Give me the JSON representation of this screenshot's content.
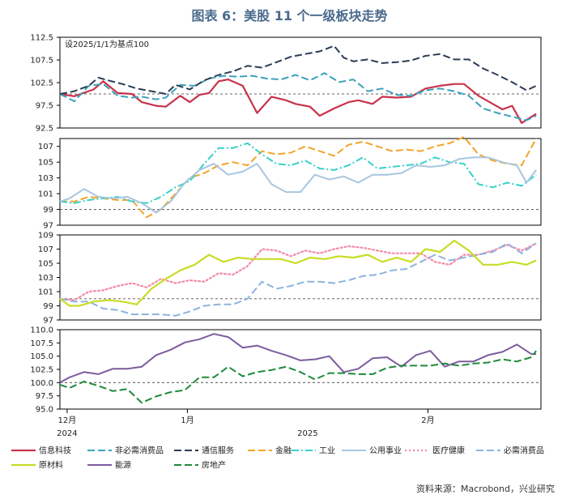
{
  "title": "图表 6：美股 11 个一级板块走势",
  "source": "资料来源：Macrobond，兴业研究",
  "chart_data": {
    "type": "line",
    "note": "设2025/1/1为基点100",
    "x_range": [
      0,
      100
    ],
    "x_ticks": [
      {
        "x": 1.5,
        "label": "12月"
      },
      {
        "x": 26.5,
        "label": "1月"
      },
      {
        "x": 76.5,
        "label": "2月"
      }
    ],
    "x_year_labels": [
      {
        "x": 1.5,
        "label": "2024"
      },
      {
        "x": 51.5,
        "label": "2025"
      }
    ],
    "panels": [
      {
        "ylim": [
          92.5,
          112.5
        ],
        "yticks": [
          "92.5",
          "97.5",
          "102.5",
          "107.5",
          "112.5"
        ],
        "yticks_values": [
          92.5,
          97.5,
          102.5,
          107.5,
          112.5
        ],
        "ref": 100,
        "series": [
          {
            "name": "信息科技",
            "color": "#c8324b",
            "dash": "solid",
            "width": 2.2,
            "x": [
              0,
              3,
              7,
              9,
              12,
              15,
              17,
              20,
              22,
              25,
              27,
              29,
              31,
              33,
              35,
              38,
              41,
              44,
              47,
              49,
              52,
              54,
              57,
              60,
              62,
              65,
              67,
              70,
              73,
              76,
              79,
              82,
              84,
              87,
              90,
              92,
              94,
              96,
              99
            ],
            "y": [
              100,
              99.5,
              101,
              102.8,
              100.2,
              100,
              98.2,
              97.4,
              97.2,
              99.6,
              98.2,
              99.8,
              100.2,
              102.8,
              103.2,
              101.8,
              95.8,
              99.4,
              98.6,
              97.8,
              97.2,
              95.2,
              96.8,
              98.2,
              98.6,
              97.8,
              99.4,
              99.2,
              99.4,
              101.2,
              101.8,
              102.2,
              102.2,
              99.6,
              97.8,
              96.6,
              97.4,
              93.6,
              95.6
            ]
          },
          {
            "name": "非必需消费品",
            "color": "#3aa2bb",
            "dash": "9,4",
            "width": 2,
            "x": [
              0,
              3,
              6,
              9,
              12,
              15,
              17,
              20,
              22,
              25,
              28,
              31,
              34,
              37,
              40,
              43,
              46,
              49,
              52,
              55,
              58,
              61,
              64,
              67,
              70,
              73,
              76,
              79,
              82,
              85,
              88,
              91,
              94,
              97,
              99
            ],
            "y": [
              100,
              98.4,
              101.8,
              102.2,
              99.6,
              99.2,
              99.4,
              98.8,
              99.2,
              102,
              101.8,
              103.4,
              104,
              103.8,
              104,
              103.4,
              103.2,
              104.2,
              103,
              104.6,
              102.6,
              103.2,
              100.6,
              101.2,
              99.8,
              99.6,
              100.8,
              101.2,
              100.6,
              99.6,
              96.8,
              95.8,
              95,
              94.2,
              95.2
            ]
          },
          {
            "name": "通信服务",
            "color": "#2b3d55",
            "dash": "9,4",
            "width": 2,
            "x": [
              0,
              3,
              6,
              8,
              10,
              13,
              16,
              19,
              22,
              24,
              27,
              30,
              33,
              36,
              39,
              42,
              45,
              48,
              51,
              54,
              57,
              59,
              61,
              64,
              67,
              70,
              73,
              76,
              79,
              82,
              85,
              88,
              91,
              94,
              97,
              99
            ],
            "y": [
              100,
              100.6,
              101.8,
              103.6,
              103,
              102.2,
              101.2,
              100.6,
              100,
              102,
              101,
              103,
              104.2,
              105,
              106.2,
              105.8,
              107,
              108.2,
              108.8,
              109.4,
              110.6,
              108,
              107.2,
              107.6,
              106.8,
              107,
              107.4,
              108.4,
              108.8,
              107.6,
              107.6,
              105.6,
              104.2,
              102.6,
              100.8,
              101.8
            ]
          }
        ]
      },
      {
        "ylim": [
          97,
          108
        ],
        "yticks": [
          "97",
          "99",
          "101",
          "103",
          "105",
          "107"
        ],
        "yticks_values": [
          97,
          99,
          101,
          103,
          105,
          107
        ],
        "ref": 99,
        "series": [
          {
            "name": "金融",
            "color": "#f2a42c",
            "dash": "9,4",
            "width": 2,
            "x": [
              0,
              3,
              6,
              9,
              12,
              15,
              18,
              21,
              24,
              27,
              30,
              33,
              36,
              39,
              42,
              45,
              48,
              51,
              54,
              57,
              60,
              63,
              66,
              69,
              72,
              75,
              78,
              81,
              84,
              87,
              90,
              93,
              96,
              99
            ],
            "y": [
              100,
              100,
              100.6,
              100.4,
              100.2,
              100.2,
              98,
              99,
              101,
              103,
              103.6,
              104.6,
              105,
              104.6,
              106.4,
              106,
              106.2,
              107,
              106.4,
              105.8,
              107.2,
              107.6,
              107,
              106.4,
              106.6,
              106.4,
              107,
              107.4,
              108.2,
              106,
              105.2,
              104.8,
              104.6,
              108
            ]
          },
          {
            "name": "工业",
            "color": "#37d2ca",
            "dash": "9,3,2,3",
            "width": 2,
            "x": [
              0,
              3,
              6,
              9,
              12,
              15,
              18,
              21,
              24,
              27,
              30,
              33,
              36,
              39,
              42,
              45,
              48,
              51,
              54,
              57,
              60,
              63,
              66,
              69,
              72,
              75,
              78,
              81,
              84,
              87,
              90,
              93,
              96,
              99
            ],
            "y": [
              100,
              99.8,
              100.2,
              100.4,
              100.6,
              100,
              99.8,
              100.6,
              101.8,
              102.6,
              104.8,
              106.8,
              106.8,
              107.4,
              106,
              104.8,
              104.6,
              105.2,
              104.2,
              104,
              104.6,
              105.6,
              104.2,
              104.4,
              104.6,
              104.8,
              105.6,
              105,
              104.8,
              102.2,
              101.8,
              102.4,
              102,
              103.4
            ]
          },
          {
            "name": "公用事业",
            "color": "#a8c6df",
            "dash": "solid",
            "width": 2,
            "x": [
              0,
              2,
              5,
              8,
              11,
              14,
              17,
              20,
              23,
              26,
              29,
              32,
              35,
              38,
              41,
              44,
              47,
              50,
              53,
              56,
              59,
              62,
              65,
              68,
              71,
              74,
              77,
              80,
              83,
              86,
              89,
              92,
              95,
              97,
              99
            ],
            "y": [
              100,
              100.4,
              101.6,
              100.6,
              100.4,
              100.6,
              99.8,
              98.6,
              100,
              102.4,
              104,
              104.8,
              103.4,
              103.8,
              104.8,
              102.2,
              101.2,
              101.2,
              103.4,
              102.8,
              103.2,
              102.4,
              103.4,
              103.4,
              103.6,
              104.6,
              104.4,
              104.6,
              105.4,
              105.6,
              105.6,
              105,
              104.6,
              102.4,
              104
            ]
          }
        ]
      },
      {
        "ylim": [
          97,
          109
        ],
        "yticks": [
          "97",
          "99",
          "101",
          "103",
          "105",
          "107",
          "109"
        ],
        "yticks_values": [
          97,
          99,
          101,
          103,
          105,
          107,
          109
        ],
        "ref": 100,
        "series": [
          {
            "name": "医疗健康",
            "color": "#f58aa6",
            "dash": "2,3",
            "width": 2.2,
            "x": [
              0,
              3,
              6,
              9,
              12,
              15,
              18,
              21,
              24,
              27,
              30,
              33,
              36,
              39,
              42,
              45,
              48,
              51,
              54,
              57,
              60,
              63,
              66,
              69,
              72,
              75,
              78,
              81,
              84,
              87,
              90,
              93,
              96,
              99
            ],
            "y": [
              100,
              99.8,
              101,
              101.2,
              101.8,
              102.2,
              101.6,
              102.8,
              102.2,
              102.6,
              102.4,
              103.6,
              103.4,
              104.6,
              107,
              106.8,
              106,
              106.8,
              106.4,
              107,
              107.4,
              107.2,
              106.8,
              106.4,
              106.4,
              106.4,
              105.2,
              104.8,
              106.2,
              106.2,
              106.8,
              107.6,
              106.8,
              107.8
            ]
          },
          {
            "name": "必需消费品",
            "color": "#8eb3e0",
            "dash": "9,4",
            "width": 2,
            "x": [
              0,
              3,
              6,
              9,
              12,
              15,
              18,
              21,
              24,
              27,
              30,
              33,
              36,
              39,
              42,
              45,
              48,
              51,
              54,
              57,
              60,
              63,
              66,
              69,
              72,
              75,
              78,
              81,
              84,
              87,
              90,
              93,
              96,
              99
            ],
            "y": [
              100,
              99.6,
              99.6,
              98.6,
              98.4,
              97.8,
              97.8,
              97.8,
              97.6,
              98.2,
              99,
              99.2,
              99.2,
              100,
              102.4,
              101.4,
              101.8,
              102.4,
              102.4,
              102.2,
              102.6,
              103.2,
              103.4,
              104,
              104.2,
              105.2,
              106.2,
              105.4,
              105.8,
              106.2,
              106.6,
              107.8,
              106.4,
              107.8
            ]
          },
          {
            "name": "原材料",
            "color": "#c7dd25",
            "dash": "solid",
            "width": 2.2,
            "x": [
              0,
              2,
              4,
              7,
              10,
              13,
              16,
              19,
              22,
              25,
              28,
              31,
              34,
              37,
              40,
              43,
              46,
              49,
              52,
              55,
              58,
              61,
              64,
              67,
              70,
              73,
              76,
              79,
              82,
              85,
              88,
              91,
              94,
              97,
              99
            ],
            "y": [
              100,
              99,
              99,
              99.6,
              99.8,
              99.6,
              99.2,
              101.4,
              102.8,
              104,
              104.8,
              106.2,
              105.2,
              105.8,
              105.6,
              105.6,
              105.6,
              105,
              105.8,
              105.6,
              106,
              105.8,
              106.2,
              105.2,
              105.8,
              105.2,
              107,
              106.6,
              108.2,
              106.8,
              104.8,
              104.8,
              105.2,
              104.8,
              105.4
            ]
          }
        ]
      },
      {
        "ylim": [
          95,
          110
        ],
        "yticks": [
          "95.0",
          "97.5",
          "100.0",
          "102.5",
          "105.0",
          "107.5",
          "110.0"
        ],
        "yticks_values": [
          95,
          97.5,
          100,
          102.5,
          105,
          107.5,
          110
        ],
        "ref": 100,
        "series": [
          {
            "name": "能源",
            "color": "#7c5c9e",
            "dash": "solid",
            "width": 2,
            "x": [
              0,
              2,
              5,
              8,
              11,
              14,
              17,
              20,
              23,
              26,
              29,
              32,
              35,
              38,
              41,
              44,
              47,
              50,
              53,
              56,
              59,
              62,
              65,
              68,
              71,
              74,
              77,
              80,
              83,
              86,
              89,
              92,
              95,
              98,
              99
            ],
            "y": [
              100,
              101,
              102,
              101.6,
              102.6,
              102.6,
              103,
              105.2,
              106.2,
              107.6,
              108.2,
              109.2,
              108.6,
              106.6,
              107,
              106,
              105.2,
              104.2,
              104.4,
              105,
              102,
              102.6,
              104.6,
              104.8,
              103,
              105.2,
              106,
              103,
              104,
              104,
              105.2,
              105.8,
              107.2,
              105.4,
              105.4
            ]
          },
          {
            "name": "房地产",
            "color": "#1f8a3a",
            "dash": "9,4",
            "width": 2,
            "x": [
              0,
              2,
              5,
              8,
              11,
              14,
              17,
              20,
              23,
              26,
              29,
              32,
              35,
              38,
              41,
              44,
              47,
              50,
              53,
              56,
              59,
              62,
              65,
              68,
              71,
              74,
              77,
              80,
              83,
              86,
              89,
              92,
              95,
              98,
              99
            ],
            "y": [
              99.6,
              99,
              100.2,
              99.4,
              98.4,
              98.8,
              96.2,
              97.4,
              98.2,
              98.6,
              101,
              101,
              103,
              101.2,
              102,
              102.4,
              103,
              102,
              100.6,
              101.8,
              101.8,
              101.6,
              101.6,
              102.8,
              103.2,
              103.2,
              103.2,
              103.6,
              103.2,
              103.6,
              103.8,
              104.4,
              104,
              104.8,
              106
            ]
          }
        ]
      }
    ],
    "legend": [
      [
        "信息科技",
        "非必需消费品",
        "通信服务",
        "金融",
        "工业",
        "公用事业",
        "医疗健康",
        "必需消费品"
      ],
      [
        "原材料",
        "能源",
        "房地产"
      ]
    ]
  }
}
